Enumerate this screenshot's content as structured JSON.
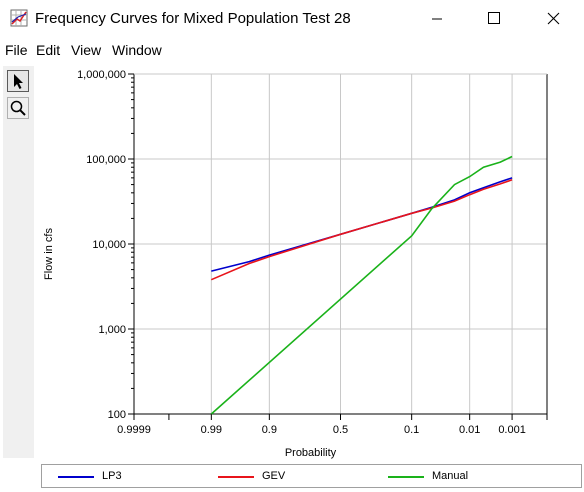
{
  "window": {
    "title": "Frequency Curves for Mixed Population Test 28",
    "icon": "chart-app-icon",
    "controls": [
      "minimize-icon",
      "maximize-icon",
      "close-icon"
    ]
  },
  "menu": {
    "items": [
      "File",
      "Edit",
      "View",
      "Window"
    ]
  },
  "toolbar": {
    "tools": [
      "pointer-icon",
      "zoom-icon"
    ],
    "selected": "pointer-icon"
  },
  "chart_data": {
    "type": "line",
    "title": "",
    "xlabel": "Probability",
    "ylabel": "Flow in cfs",
    "y_scale": "log",
    "x_scale": "normal-probability (exceedance, reversed)",
    "ylim": [
      100,
      1000000
    ],
    "xlim": [
      0.9999,
      0.0001
    ],
    "grid": true,
    "legend_position": "bottom",
    "x_ticks": [
      {
        "value": 0.9999,
        "label": "0.9999"
      },
      {
        "value": 0.99,
        "label": "0.99"
      },
      {
        "value": 0.9,
        "label": "0.9"
      },
      {
        "value": 0.5,
        "label": "0.5"
      },
      {
        "value": 0.1,
        "label": "0.1"
      },
      {
        "value": 0.01,
        "label": "0.01"
      },
      {
        "value": 0.001,
        "label": "0.001"
      }
    ],
    "x_minor_ticks": [
      0.999,
      0.0001
    ],
    "y_ticks": [
      {
        "value": 100,
        "label": "100"
      },
      {
        "value": 1000,
        "label": "1,000"
      },
      {
        "value": 10000,
        "label": "10,000"
      },
      {
        "value": 100000,
        "label": "100,000"
      },
      {
        "value": 1000000,
        "label": "1,000,000"
      }
    ],
    "series": [
      {
        "name": "LP3",
        "color": "#0000cc",
        "points": [
          [
            0.99,
            4800
          ],
          [
            0.95,
            6200
          ],
          [
            0.9,
            7400
          ],
          [
            0.5,
            13000
          ],
          [
            0.1,
            23000
          ],
          [
            0.05,
            27000
          ],
          [
            0.02,
            33000
          ],
          [
            0.01,
            40000
          ],
          [
            0.005,
            46000
          ],
          [
            0.002,
            54000
          ],
          [
            0.001,
            60000
          ]
        ]
      },
      {
        "name": "GEV",
        "color": "#e8141b",
        "points": [
          [
            0.99,
            3800
          ],
          [
            0.95,
            5900
          ],
          [
            0.9,
            7100
          ],
          [
            0.5,
            13000
          ],
          [
            0.1,
            23000
          ],
          [
            0.05,
            26500
          ],
          [
            0.02,
            32000
          ],
          [
            0.01,
            38000
          ],
          [
            0.005,
            44000
          ],
          [
            0.002,
            51000
          ],
          [
            0.001,
            57000
          ]
        ]
      },
      {
        "name": "Manual",
        "color": "#1ab21a",
        "points": [
          [
            0.99,
            100
          ],
          [
            0.1,
            12500
          ],
          [
            0.05,
            26000
          ],
          [
            0.02,
            50000
          ],
          [
            0.01,
            62000
          ],
          [
            0.005,
            80000
          ],
          [
            0.002,
            92000
          ],
          [
            0.001,
            107000
          ]
        ]
      }
    ]
  }
}
